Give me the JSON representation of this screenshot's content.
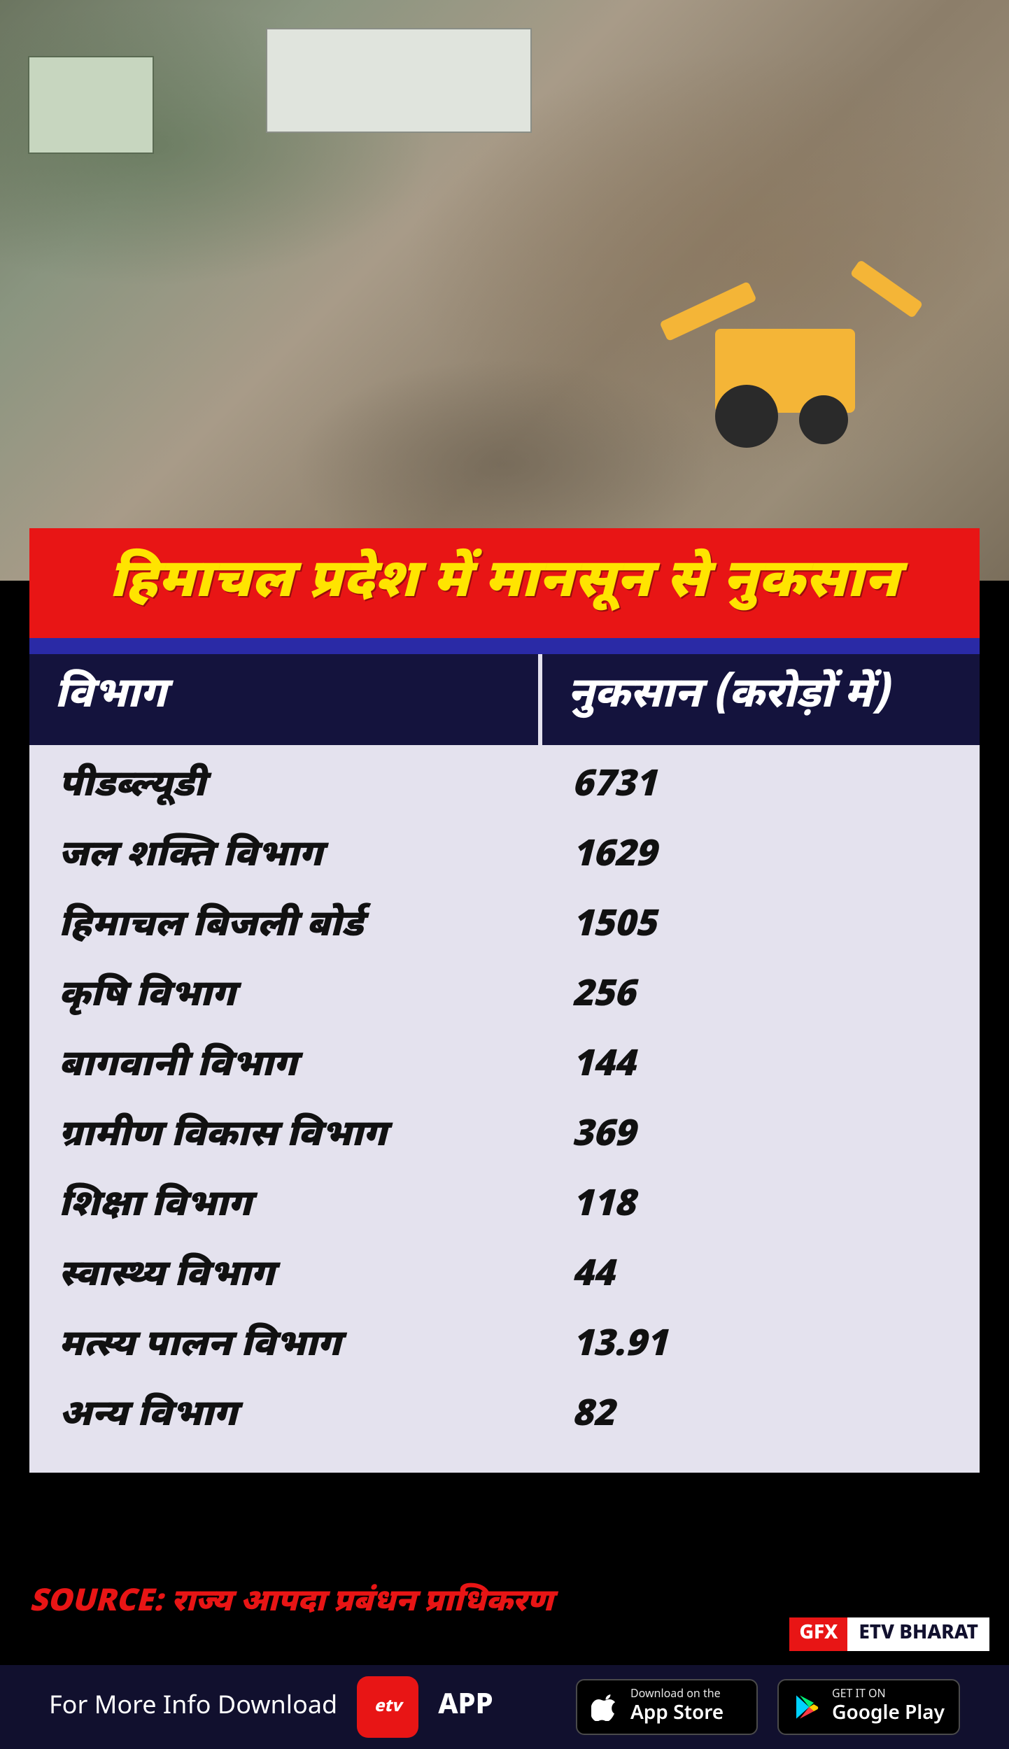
{
  "colors": {
    "banner_bg": "#e81515",
    "banner_underline": "#2a2aa6",
    "title_text": "#ffe400",
    "thead_bg": "#14133d",
    "tbody_bg": "#e4e2ee",
    "source_color": "#e81515",
    "footer_bg": "#11102e",
    "gfx_bg": "#e81515",
    "brand_bg": "#ffffff"
  },
  "title": "हिमाचल प्रदेश में मानसून से नुकसान",
  "table": {
    "type": "table",
    "columns": [
      "विभाग",
      "नुकसान (करोड़ों में)"
    ],
    "rows": [
      {
        "dept": "पीडब्ल्यूडी",
        "loss": "6731"
      },
      {
        "dept": "जल शक्ति विभाग",
        "loss": "1629"
      },
      {
        "dept": "हिमाचल बिजली बोर्ड",
        "loss": "1505"
      },
      {
        "dept": "कृषि विभाग",
        "loss": "256"
      },
      {
        "dept": "बागवानी विभाग",
        "loss": "144"
      },
      {
        "dept": "ग्रामीण विकास विभाग",
        "loss": "369"
      },
      {
        "dept": "शिक्षा विभाग",
        "loss": "118"
      },
      {
        "dept": "स्वास्थ्य विभाग",
        "loss": "44"
      },
      {
        "dept": "मत्स्य पालन विभाग",
        "loss": "13.91"
      },
      {
        "dept": "अन्य विभाग",
        "loss": "82"
      }
    ],
    "header_fontsize": 60,
    "cell_fontsize": 52,
    "col_widths_pct": [
      54,
      46
    ]
  },
  "source": {
    "label": "SOURCE:",
    "text": "राज्य आपदा प्रबंधन प्राधिकरण"
  },
  "gfx_tag": {
    "gfx": "GFX",
    "brand": "ETV BHARAT"
  },
  "footer": {
    "more_info": "For More Info Download",
    "app_logo_text": "etv",
    "app_word": "APP",
    "appstore": {
      "line1": "Download on the",
      "line2": "App Store"
    },
    "playstore": {
      "line1": "GET IT ON",
      "line2": "Google Play"
    }
  }
}
